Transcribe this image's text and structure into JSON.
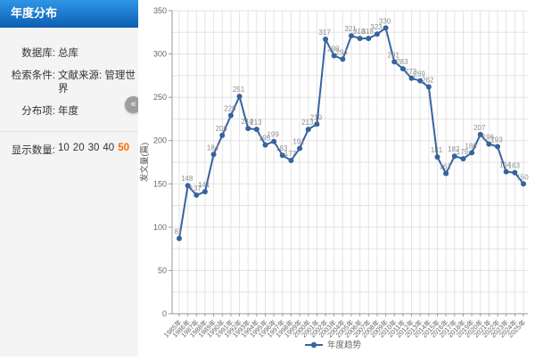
{
  "sidebar": {
    "title": "年度分布",
    "rows": [
      {
        "label": "数据库:",
        "value": "总库"
      },
      {
        "label": "检索条件:",
        "value": "文献来源: 管理世界"
      },
      {
        "label": "分布项:",
        "value": "年度"
      }
    ],
    "display_count": {
      "label": "显示数量:",
      "options": [
        "10",
        "20",
        "30",
        "40",
        "50"
      ],
      "selected": "50"
    },
    "collapse_icon": "«"
  },
  "chart_data": {
    "type": "line",
    "x": [
      "1985年",
      "1986年",
      "1987年",
      "1988年",
      "1989年",
      "1990年",
      "1991年",
      "1992年",
      "1993年",
      "1994年",
      "1995年",
      "1996年",
      "1997年",
      "1998年",
      "1999年",
      "2000年",
      "2001年",
      "2002年",
      "2003年",
      "2004年",
      "2005年",
      "2006年",
      "2007年",
      "2008年",
      "2009年",
      "2010年",
      "2011年",
      "2012年",
      "2013年",
      "2014年",
      "2015年",
      "2016年",
      "2017年",
      "2018年",
      "2019年",
      "2020年",
      "2021年",
      "2022年",
      "2023年",
      "2024年",
      "2025年"
    ],
    "series": [
      {
        "name": "年度趋势",
        "values": [
          87,
          148,
          137,
          141,
          184,
          206,
          229,
          251,
          214,
          213,
          195,
          199,
          183,
          177,
          191,
          213,
          219,
          317,
          298,
          294,
          321,
          318,
          318,
          323,
          330,
          291,
          283,
          272,
          269,
          262,
          181,
          162,
          182,
          179,
          186,
          207,
          196,
          193,
          164,
          163,
          150
        ]
      }
    ],
    "ylabel": "发文量(篇)",
    "ylim": [
      0,
      350
    ],
    "y_tick_step": 50,
    "y_grid_step": 25,
    "grid": true,
    "legend_position": "bottom",
    "colors": {
      "line": "#36639e",
      "point": "#36639e",
      "value_label": "#8d8d8d",
      "axis_text": "#666666",
      "grid": "#e3e3e3",
      "axis_line": "#9a9a9a"
    }
  }
}
